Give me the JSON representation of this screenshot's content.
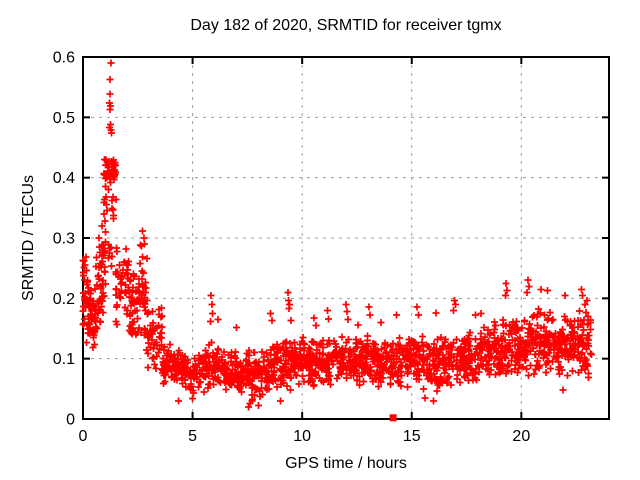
{
  "colors": {
    "marker": "#ff0000",
    "axis": "#000000",
    "grid": "#9c9c9c",
    "text": "#000000",
    "background": "#ffffff"
  },
  "chart_data": {
    "type": "scatter",
    "title": "Day 182 of 2020, SRMTID for receiver tgmx",
    "xlabel": "GPS time / hours",
    "ylabel": "SRMTID / TECUs",
    "xlim": [
      0,
      24
    ],
    "ylim": [
      0,
      0.6
    ],
    "grid": true,
    "marker": "plus",
    "xticks": [
      {
        "v": 0,
        "label": "0"
      },
      {
        "v": 5,
        "label": "5"
      },
      {
        "v": 10,
        "label": "10"
      },
      {
        "v": 15,
        "label": "15"
      },
      {
        "v": 20,
        "label": "20"
      }
    ],
    "yticks": [
      {
        "v": 0,
        "label": "0"
      },
      {
        "v": 0.1,
        "label": "0.1"
      },
      {
        "v": 0.2,
        "label": "0.2"
      },
      {
        "v": 0.3,
        "label": "0.3"
      },
      {
        "v": 0.4,
        "label": "0.4"
      },
      {
        "v": 0.5,
        "label": "0.5"
      },
      {
        "v": 0.6,
        "label": "0.6"
      }
    ],
    "band_profile": [
      {
        "x0": 0.0,
        "x1": 0.35,
        "n": 50,
        "ylo": 0.12,
        "yhi": 0.27
      },
      {
        "x0": 0.35,
        "x1": 0.6,
        "n": 30,
        "ylo": 0.11,
        "yhi": 0.22
      },
      {
        "x0": 0.6,
        "x1": 0.9,
        "n": 30,
        "ylo": 0.14,
        "yhi": 0.3
      },
      {
        "x0": 0.85,
        "x1": 1.05,
        "n": 20,
        "ylo": 0.17,
        "yhi": 0.33
      },
      {
        "x0": 0.95,
        "x1": 1.55,
        "n": 38,
        "ylo": 0.375,
        "yhi": 0.445
      },
      {
        "x0": 0.9,
        "x1": 1.55,
        "n": 15,
        "ylo": 0.31,
        "yhi": 0.375
      },
      {
        "x0": 0.95,
        "x1": 1.5,
        "n": 8,
        "ylo": 0.25,
        "yhi": 0.31
      },
      {
        "x0": 1.5,
        "x1": 2.1,
        "n": 45,
        "ylo": 0.15,
        "yhi": 0.3
      },
      {
        "x0": 2.1,
        "x1": 2.5,
        "n": 40,
        "ylo": 0.12,
        "yhi": 0.26
      },
      {
        "x0": 2.5,
        "x1": 2.95,
        "n": 40,
        "ylo": 0.1,
        "yhi": 0.31
      },
      {
        "x0": 2.95,
        "x1": 3.6,
        "n": 45,
        "ylo": 0.08,
        "yhi": 0.19
      },
      {
        "x0": 3.6,
        "x1": 4.5,
        "n": 70,
        "ylo": 0.055,
        "yhi": 0.125
      },
      {
        "x0": 4.5,
        "x1": 5.5,
        "n": 75,
        "ylo": 0.04,
        "yhi": 0.115
      },
      {
        "x0": 5.5,
        "x1": 6.5,
        "n": 80,
        "ylo": 0.04,
        "yhi": 0.13
      },
      {
        "x0": 6.5,
        "x1": 7.5,
        "n": 80,
        "ylo": 0.035,
        "yhi": 0.12
      },
      {
        "x0": 7.5,
        "x1": 8.5,
        "n": 85,
        "ylo": 0.03,
        "yhi": 0.125
      },
      {
        "x0": 8.5,
        "x1": 9.5,
        "n": 85,
        "ylo": 0.04,
        "yhi": 0.135
      },
      {
        "x0": 9.5,
        "x1": 10.5,
        "n": 85,
        "ylo": 0.045,
        "yhi": 0.14
      },
      {
        "x0": 10.5,
        "x1": 11.5,
        "n": 85,
        "ylo": 0.05,
        "yhi": 0.14
      },
      {
        "x0": 11.5,
        "x1": 12.5,
        "n": 85,
        "ylo": 0.05,
        "yhi": 0.145
      },
      {
        "x0": 12.5,
        "x1": 13.5,
        "n": 85,
        "ylo": 0.05,
        "yhi": 0.14
      },
      {
        "x0": 13.5,
        "x1": 14.5,
        "n": 80,
        "ylo": 0.045,
        "yhi": 0.14
      },
      {
        "x0": 14.5,
        "x1": 15.5,
        "n": 80,
        "ylo": 0.05,
        "yhi": 0.145
      },
      {
        "x0": 15.5,
        "x1": 16.5,
        "n": 80,
        "ylo": 0.04,
        "yhi": 0.14
      },
      {
        "x0": 16.5,
        "x1": 17.5,
        "n": 80,
        "ylo": 0.05,
        "yhi": 0.15
      },
      {
        "x0": 17.5,
        "x1": 18.5,
        "n": 80,
        "ylo": 0.055,
        "yhi": 0.155
      },
      {
        "x0": 18.5,
        "x1": 19.5,
        "n": 85,
        "ylo": 0.06,
        "yhi": 0.17
      },
      {
        "x0": 19.5,
        "x1": 20.5,
        "n": 85,
        "ylo": 0.065,
        "yhi": 0.185
      },
      {
        "x0": 20.5,
        "x1": 21.5,
        "n": 85,
        "ylo": 0.07,
        "yhi": 0.19
      },
      {
        "x0": 21.5,
        "x1": 22.5,
        "n": 80,
        "ylo": 0.06,
        "yhi": 0.185
      },
      {
        "x0": 22.5,
        "x1": 23.2,
        "n": 55,
        "ylo": 0.06,
        "yhi": 0.19
      }
    ],
    "outlier_points": [
      [
        1.28,
        0.59
      ],
      [
        1.23,
        0.563
      ],
      [
        1.23,
        0.539
      ],
      [
        1.22,
        0.524
      ],
      [
        1.26,
        0.519
      ],
      [
        1.24,
        0.513
      ],
      [
        1.25,
        0.488
      ],
      [
        1.22,
        0.483
      ],
      [
        1.28,
        0.479
      ],
      [
        1.3,
        0.474
      ],
      [
        0.97,
        0.43
      ],
      [
        0.95,
        0.405
      ],
      [
        1.02,
        0.385
      ],
      [
        0.72,
        0.3
      ],
      [
        0.75,
        0.285
      ],
      [
        0.05,
        0.262
      ],
      [
        0.1,
        0.255
      ],
      [
        2.72,
        0.312
      ],
      [
        2.78,
        0.3
      ],
      [
        2.62,
        0.288
      ],
      [
        5.85,
        0.205
      ],
      [
        5.88,
        0.19
      ],
      [
        5.92,
        0.175
      ],
      [
        5.82,
        0.162
      ],
      [
        6.15,
        0.165
      ],
      [
        7.0,
        0.152
      ],
      [
        8.55,
        0.175
      ],
      [
        8.62,
        0.163
      ],
      [
        9.35,
        0.21
      ],
      [
        9.38,
        0.196
      ],
      [
        9.42,
        0.19
      ],
      [
        9.4,
        0.183
      ],
      [
        9.5,
        0.163
      ],
      [
        10.55,
        0.167
      ],
      [
        10.62,
        0.155
      ],
      [
        11.15,
        0.18
      ],
      [
        11.2,
        0.166
      ],
      [
        12.0,
        0.19
      ],
      [
        12.05,
        0.178
      ],
      [
        12.1,
        0.165
      ],
      [
        12.55,
        0.156
      ],
      [
        13.05,
        0.186
      ],
      [
        13.1,
        0.172
      ],
      [
        13.6,
        0.16
      ],
      [
        14.3,
        0.172
      ],
      [
        15.25,
        0.186
      ],
      [
        15.3,
        0.172
      ],
      [
        16.1,
        0.176
      ],
      [
        16.95,
        0.196
      ],
      [
        17.0,
        0.19
      ],
      [
        16.9,
        0.18
      ],
      [
        17.9,
        0.172
      ],
      [
        18.15,
        0.175
      ],
      [
        19.3,
        0.225
      ],
      [
        19.35,
        0.213
      ],
      [
        19.28,
        0.205
      ],
      [
        20.3,
        0.23
      ],
      [
        20.35,
        0.22
      ],
      [
        20.25,
        0.21
      ],
      [
        20.9,
        0.215
      ],
      [
        21.2,
        0.213
      ],
      [
        22.0,
        0.205
      ],
      [
        22.75,
        0.215
      ],
      [
        22.8,
        0.205
      ],
      [
        23.0,
        0.196
      ],
      [
        22.9,
        0.19
      ],
      [
        4.35,
        0.03
      ],
      [
        5.0,
        0.034
      ],
      [
        7.55,
        0.02
      ],
      [
        7.62,
        0.026
      ],
      [
        7.7,
        0.03
      ],
      [
        8.0,
        0.022
      ],
      [
        9.0,
        0.03
      ],
      [
        15.6,
        0.035
      ],
      [
        16.0,
        0.03
      ],
      [
        21.9,
        0.048
      ]
    ],
    "square_point": [
      14.15,
      0.002
    ]
  }
}
